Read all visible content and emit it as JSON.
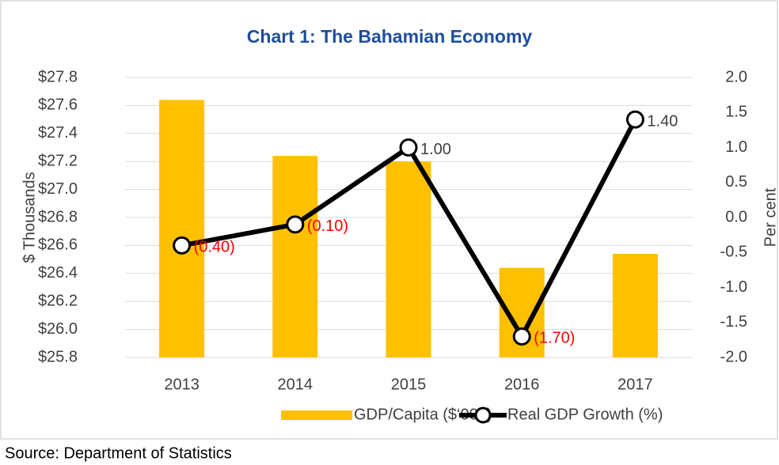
{
  "chart_data": {
    "type": "bar_line",
    "title": "Chart 1: The Bahamian Economy",
    "title_color": "#1f4e9a",
    "categories": [
      "2013",
      "2014",
      "2015",
      "2016",
      "2017"
    ],
    "series": [
      {
        "name": "GDP/Capita ($‘000)",
        "type": "bar",
        "color": "#ffc000",
        "values": [
          27.64,
          27.24,
          27.2,
          26.44,
          26.54
        ]
      },
      {
        "name": "Real GDP Growth (%)",
        "type": "line",
        "axis": "y2",
        "color": "#000000",
        "marker_fill": "#ffffff",
        "values": [
          -0.4,
          -0.1,
          1.0,
          -1.7,
          1.4
        ],
        "value_labels": [
          "(0.40)",
          "(0.10)",
          "1.00",
          "(1.70)",
          "1.40"
        ],
        "negative_label_color": "#ff0000"
      }
    ],
    "ylabel": "$ Thousands",
    "y2label": "Per cent",
    "ylim": [
      25.8,
      27.8
    ],
    "yticks": [
      {
        "value": 25.8,
        "label": "$25.8"
      },
      {
        "value": 26.0,
        "label": "$26.0"
      },
      {
        "value": 26.2,
        "label": "$26.2"
      },
      {
        "value": 26.4,
        "label": "$26.4"
      },
      {
        "value": 26.6,
        "label": "$26.6"
      },
      {
        "value": 26.8,
        "label": "$26.8"
      },
      {
        "value": 27.0,
        "label": "$27.0"
      },
      {
        "value": 27.2,
        "label": "$27.2"
      },
      {
        "value": 27.4,
        "label": "$27.4"
      },
      {
        "value": 27.6,
        "label": "$27.6"
      },
      {
        "value": 27.8,
        "label": "$27.8"
      }
    ],
    "y2lim": [
      -2.0,
      2.0
    ],
    "y2ticks": [
      {
        "value": -2.0,
        "label": "-2.0"
      },
      -1.5,
      {
        "value": -1.0,
        "label": "-1.0"
      },
      -0.5,
      {
        "value": 0,
        "label": "0.0"
      },
      0.5,
      {
        "value": 1.0,
        "label": "1.0"
      },
      1.5,
      {
        "value": 2.0,
        "label": "2.0"
      }
    ],
    "grid": true,
    "legend": "bottom",
    "source": "Source: Department of Statistics"
  }
}
